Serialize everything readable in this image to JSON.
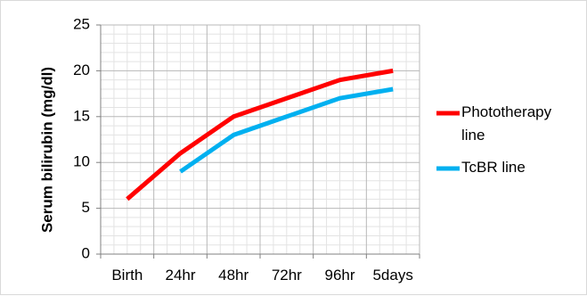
{
  "chart_data": {
    "type": "line",
    "title": "",
    "xlabel": "",
    "ylabel": "Serum bilirubin (mg/dl)",
    "categories": [
      "Birth",
      "24hr",
      "48hr",
      "72hr",
      "96hr",
      "5days"
    ],
    "ylim": [
      0,
      25
    ],
    "yticks": [
      0,
      5,
      10,
      15,
      20,
      25
    ],
    "grid": true,
    "legend_position": "right",
    "series": [
      {
        "name": "Phototherapy line",
        "name_lines": [
          "Phototherapy",
          "line"
        ],
        "color": "#ff0000",
        "values": [
          6,
          11,
          15,
          17,
          19,
          20
        ]
      },
      {
        "name": "TcBR line",
        "name_lines": [
          "TcBR line"
        ],
        "color": "#00b0f0",
        "values": [
          null,
          9,
          13,
          15,
          17,
          18
        ]
      }
    ]
  }
}
